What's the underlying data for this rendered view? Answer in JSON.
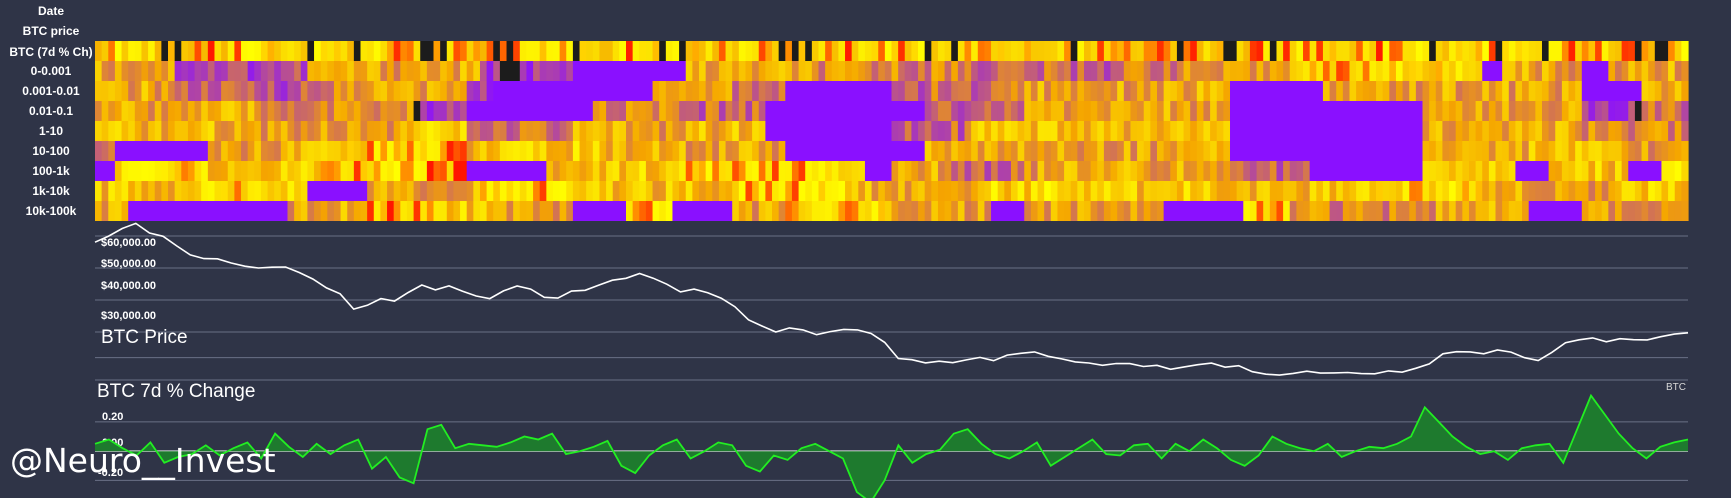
{
  "watermark": "@Neuro__Invest",
  "colors": {
    "background": "#2f3447",
    "price_line": "#ffffff",
    "change_line": "#22ee22",
    "change_fill": "#1e7a2e",
    "grid": "#6a7086",
    "heat_low": "#8a10ff",
    "heat_mid": "#f5a400",
    "heat_high": "#ffff00",
    "heat_hot": "#ff1500",
    "heat_dark": "#1c1c1c"
  },
  "chart_data": [
    {
      "type": "heatmap",
      "row_labels": [
        "Date",
        "BTC price",
        "BTC (7d % Ch)",
        "0-0.001",
        "0.001-0.01",
        "0.01-0.1",
        "1-10",
        "10-100",
        "100-1k",
        "1k-10k",
        "10k-100k"
      ],
      "rows": [
        {
          "label": "BTC (7d % Ch)",
          "segments": [
            [
              0,
              1.0
            ],
            [
              0.05,
              0.85
            ],
            [
              0.1,
              1.0
            ],
            [
              0.18,
              0.7
            ],
            [
              0.25,
              0.95
            ],
            [
              0.32,
              0.8
            ],
            [
              0.4,
              1.0
            ],
            [
              0.47,
              0.85
            ],
            [
              0.55,
              0.95
            ],
            [
              0.6,
              0.75
            ],
            [
              0.7,
              0.95
            ],
            [
              0.78,
              1.0
            ],
            [
              0.83,
              0.7
            ],
            [
              0.9,
              1.0
            ],
            [
              0.95,
              0.85
            ]
          ]
        },
        {
          "label": "0-0.001",
          "segments": [
            [
              0,
              0.5
            ],
            [
              0.05,
              0.2
            ],
            [
              0.13,
              0.5
            ],
            [
              0.24,
              0.1
            ],
            [
              0.3,
              0.0
            ],
            [
              0.37,
              0.5
            ],
            [
              0.45,
              0.4
            ],
            [
              0.55,
              0.3
            ],
            [
              0.65,
              0.4
            ],
            [
              0.73,
              0.5
            ],
            [
              0.75,
              0.8
            ],
            [
              0.82,
              0.7
            ],
            [
              0.87,
              0.0
            ],
            [
              0.88,
              0.5
            ],
            [
              0.93,
              0.0
            ],
            [
              0.95,
              0.5
            ]
          ]
        },
        {
          "label": "0.001-0.01",
          "segments": [
            [
              0,
              0.5
            ],
            [
              0.05,
              0.25
            ],
            [
              0.15,
              0.5
            ],
            [
              0.23,
              0.1
            ],
            [
              0.25,
              0.0
            ],
            [
              0.35,
              0.5
            ],
            [
              0.4,
              0.35
            ],
            [
              0.43,
              0.0
            ],
            [
              0.5,
              0.3
            ],
            [
              0.57,
              0.5
            ],
            [
              0.71,
              0.0
            ],
            [
              0.77,
              0.5
            ],
            [
              0.84,
              0.5
            ],
            [
              0.93,
              0.0
            ],
            [
              0.97,
              0.5
            ]
          ]
        },
        {
          "label": "0.01-0.1",
          "segments": [
            [
              0,
              0.5
            ],
            [
              0.1,
              0.4
            ],
            [
              0.2,
              0.1
            ],
            [
              0.23,
              0.0
            ],
            [
              0.31,
              0.4
            ],
            [
              0.36,
              0.3
            ],
            [
              0.42,
              0.0
            ],
            [
              0.52,
              0.3
            ],
            [
              0.58,
              0.5
            ],
            [
              0.71,
              0.0
            ],
            [
              0.83,
              0.5
            ],
            [
              0.93,
              0.1
            ],
            [
              0.97,
              0.3
            ]
          ]
        },
        {
          "label": "1-10",
          "segments": [
            [
              0,
              0.55
            ],
            [
              0.1,
              0.5
            ],
            [
              0.2,
              0.6
            ],
            [
              0.23,
              0.3
            ],
            [
              0.3,
              0.5
            ],
            [
              0.37,
              0.55
            ],
            [
              0.42,
              0.0
            ],
            [
              0.5,
              0.3
            ],
            [
              0.55,
              0.55
            ],
            [
              0.71,
              0.0
            ],
            [
              0.83,
              0.55
            ],
            [
              0.93,
              0.4
            ]
          ]
        },
        {
          "label": "10-100",
          "segments": [
            [
              0,
              0.4
            ],
            [
              0.01,
              0.0
            ],
            [
              0.07,
              0.5
            ],
            [
              0.13,
              0.7
            ],
            [
              0.17,
              0.85
            ],
            [
              0.23,
              0.6
            ],
            [
              0.32,
              0.55
            ],
            [
              0.35,
              0.5
            ],
            [
              0.43,
              0.0
            ],
            [
              0.52,
              0.5
            ],
            [
              0.71,
              0.0
            ],
            [
              0.83,
              0.55
            ],
            [
              0.95,
              0.45
            ]
          ]
        },
        {
          "label": "100-1k",
          "segments": [
            [
              0,
              0.0
            ],
            [
              0.01,
              0.75
            ],
            [
              0.07,
              0.6
            ],
            [
              0.14,
              0.85
            ],
            [
              0.23,
              0.0
            ],
            [
              0.28,
              0.6
            ],
            [
              0.36,
              0.8
            ],
            [
              0.48,
              0.0
            ],
            [
              0.5,
              0.5
            ],
            [
              0.53,
              0.3
            ],
            [
              0.58,
              0.5
            ],
            [
              0.72,
              0.3
            ],
            [
              0.76,
              0.0
            ],
            [
              0.83,
              0.6
            ],
            [
              0.89,
              0.0
            ],
            [
              0.91,
              0.6
            ],
            [
              0.96,
              0.0
            ],
            [
              0.98,
              0.8
            ]
          ]
        },
        {
          "label": "1k-10k",
          "segments": [
            [
              0,
              0.6
            ],
            [
              0.06,
              0.75
            ],
            [
              0.13,
              0.0
            ],
            [
              0.17,
              0.5
            ],
            [
              0.24,
              0.8
            ],
            [
              0.3,
              0.6
            ],
            [
              0.4,
              0.8
            ],
            [
              0.47,
              0.55
            ],
            [
              0.55,
              0.65
            ],
            [
              0.62,
              0.6
            ],
            [
              0.72,
              0.6
            ],
            [
              0.79,
              0.75
            ],
            [
              0.87,
              0.5
            ],
            [
              0.95,
              0.6
            ]
          ]
        },
        {
          "label": "10k-100k",
          "segments": [
            [
              0,
              0.5
            ],
            [
              0.02,
              0.0
            ],
            [
              0.1,
              0.8
            ],
            [
              0.1,
              0.0
            ],
            [
              0.12,
              0.5
            ],
            [
              0.17,
              0.85
            ],
            [
              0.21,
              0.6
            ],
            [
              0.25,
              0.5
            ],
            [
              0.3,
              0.0
            ],
            [
              0.33,
              0.8
            ],
            [
              0.36,
              0.0
            ],
            [
              0.4,
              0.5
            ],
            [
              0.43,
              0.8
            ],
            [
              0.5,
              0.5
            ],
            [
              0.56,
              0.0
            ],
            [
              0.58,
              0.5
            ],
            [
              0.67,
              0.0
            ],
            [
              0.72,
              0.85
            ],
            [
              0.75,
              0.4
            ],
            [
              0.84,
              0.5
            ],
            [
              0.9,
              0.0
            ],
            [
              0.93,
              0.5
            ]
          ]
        }
      ]
    },
    {
      "type": "line",
      "title": "BTC Price",
      "yticks": [
        60000,
        50000,
        40000,
        30000
      ],
      "ytick_labels": [
        "$60,000.00",
        "$50,000.00",
        "$40,000.00",
        "$30,000.00"
      ],
      "ylim": [
        15000,
        65000
      ],
      "legend": "BTC",
      "values": [
        58500,
        60200,
        62000,
        63500,
        61000,
        60000,
        57000,
        54500,
        53000,
        52500,
        51500,
        50200,
        49700,
        50500,
        50000,
        48500,
        46800,
        44000,
        42000,
        37500,
        38500,
        40000,
        39500,
        42000,
        44500,
        43200,
        44000,
        42700,
        41500,
        40500,
        43000,
        44200,
        43000,
        41000,
        40800,
        42500,
        43200,
        44500,
        46000,
        47000,
        48000,
        46500,
        45000,
        42800,
        43000,
        42200,
        40500,
        38000,
        33500,
        32000,
        30000,
        31500,
        30500,
        29500,
        30000,
        31000,
        30300,
        29500,
        27000,
        22000,
        21000,
        20000,
        20500,
        20000,
        21000,
        22500,
        21000,
        22500,
        23500,
        24000,
        22500,
        21500,
        20500,
        20000,
        19500,
        20000,
        20000,
        19000,
        19500,
        18500,
        19500,
        20000,
        20500,
        19000,
        19500,
        18000,
        16700,
        16400,
        17000,
        17300,
        17000,
        17500,
        17200,
        17000,
        17200,
        17800,
        17500,
        19000,
        20000,
        23000,
        24000,
        23500,
        23000,
        24000,
        23500,
        22000,
        21500,
        24000,
        26800,
        28000,
        28500,
        27300,
        28000,
        28000,
        27800,
        28500,
        29300,
        30000
      ]
    },
    {
      "type": "area",
      "title": "BTC 7d % Change",
      "yticks": [
        0.2,
        0.0,
        -0.2
      ],
      "ytick_labels": [
        "0.20",
        "0.00",
        "-0.20"
      ],
      "ylim": [
        -0.3,
        0.35
      ],
      "values": [
        0.05,
        0.08,
        0.02,
        -0.03,
        0.06,
        -0.08,
        -0.04,
        -0.02,
        0.04,
        -0.03,
        0.02,
        0.06,
        -0.05,
        0.12,
        0.03,
        -0.04,
        0.05,
        -0.02,
        0.04,
        0.08,
        -0.12,
        -0.04,
        -0.18,
        -0.22,
        0.15,
        0.18,
        0.02,
        0.05,
        0.04,
        0.03,
        0.06,
        0.1,
        0.08,
        0.12,
        -0.02,
        0.0,
        0.03,
        0.07,
        -0.1,
        -0.15,
        -0.03,
        0.04,
        0.08,
        -0.05,
        0.0,
        0.06,
        0.04,
        -0.1,
        -0.14,
        -0.03,
        -0.06,
        0.02,
        0.05,
        0.0,
        -0.05,
        -0.28,
        -0.35,
        -0.2,
        0.04,
        -0.08,
        -0.02,
        0.01,
        0.12,
        0.15,
        0.05,
        -0.02,
        -0.05,
        0.0,
        0.06,
        -0.1,
        -0.04,
        0.02,
        0.08,
        -0.02,
        -0.03,
        0.04,
        0.05,
        -0.05,
        0.05,
        0.0,
        0.08,
        0.02,
        -0.06,
        -0.1,
        -0.03,
        0.1,
        0.05,
        0.02,
        0.0,
        0.05,
        -0.04,
        0.0,
        0.03,
        0.02,
        0.05,
        0.1,
        0.3,
        0.2,
        0.1,
        0.03,
        -0.02,
        0.0,
        -0.06,
        0.02,
        0.04,
        0.05,
        -0.08,
        0.15,
        0.38,
        0.25,
        0.12,
        0.02,
        -0.05,
        0.03,
        0.06,
        0.08
      ]
    }
  ]
}
